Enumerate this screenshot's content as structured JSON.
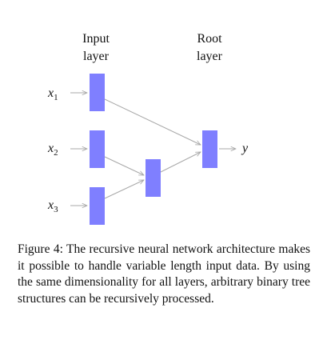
{
  "diagram": {
    "columns": [
      {
        "id": "input",
        "line1": "Input",
        "line2": "layer"
      },
      {
        "id": "root",
        "line1": "Root",
        "line2": "layer"
      }
    ],
    "inputs": [
      {
        "id": "x1",
        "base": "x",
        "sub": "1"
      },
      {
        "id": "x2",
        "base": "x",
        "sub": "2"
      },
      {
        "id": "x3",
        "base": "x",
        "sub": "3"
      }
    ],
    "output": {
      "label": "y"
    },
    "node_color": "#7f7fff",
    "edge_color": "#a8a8a8"
  },
  "caption": {
    "text": "Figure 4: The recursive neural network architecture makes it possible to handle variable length input data. By using the same dimensionality for all layers, arbitrary binary tree structures can be recursively processed."
  }
}
